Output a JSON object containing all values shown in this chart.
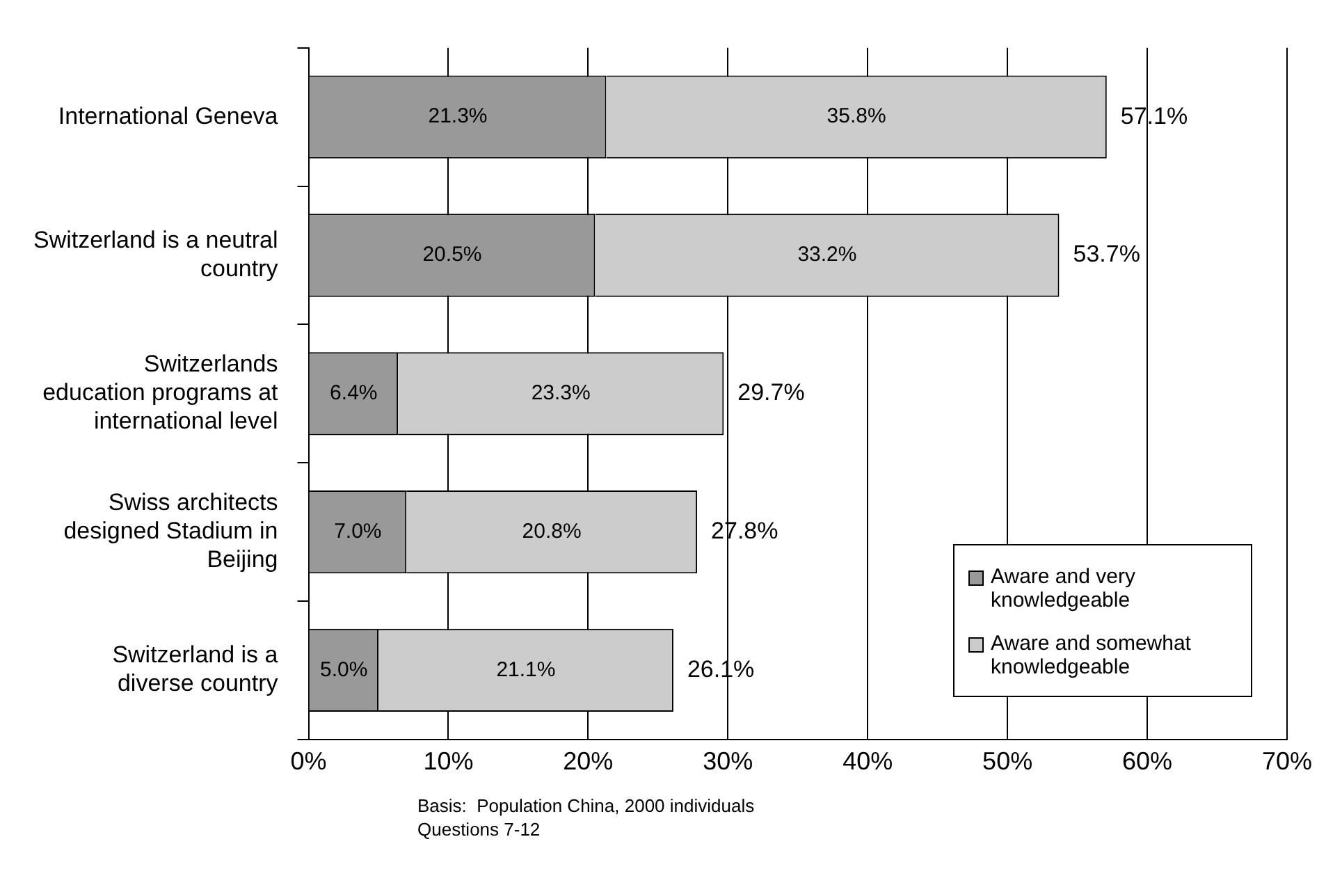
{
  "chart_data": {
    "type": "bar",
    "orientation": "horizontal",
    "stacked": true,
    "categories": [
      "International Geneva",
      "Switzerland is a neutral\ncountry",
      "Switzerlands\neducation programs at\ninternational level",
      "Swiss architects\ndesigned Stadium in\nBeijing",
      "Switzerland is a\ndiverse country"
    ],
    "series": [
      {
        "name": "Aware and very knowledgeable",
        "color": "#999999",
        "values": [
          21.3,
          20.5,
          6.4,
          7.0,
          5.0
        ],
        "value_labels": [
          "21.3%",
          "20.5%",
          "6.4%",
          "7.0%",
          "5.0%"
        ]
      },
      {
        "name": "Aware and somewhat knowledgeable",
        "color": "#cccccc",
        "values": [
          35.8,
          33.2,
          23.3,
          20.8,
          21.1
        ],
        "value_labels": [
          "35.8%",
          "33.2%",
          "23.3%",
          "20.8%",
          "21.1%"
        ]
      }
    ],
    "totals": [
      "57.1%",
      "53.7%",
      "29.7%",
      "27.8%",
      "26.1%"
    ],
    "xlim": [
      0,
      70
    ],
    "xticks": [
      {
        "value": 0,
        "label": "0%"
      },
      {
        "value": 10,
        "label": "10%"
      },
      {
        "value": 20,
        "label": "20%"
      },
      {
        "value": 30,
        "label": "30%"
      },
      {
        "value": 40,
        "label": "40%"
      },
      {
        "value": 50,
        "label": "50%"
      },
      {
        "value": 60,
        "label": "60%"
      },
      {
        "value": 70,
        "label": "70%"
      }
    ],
    "grid": "x",
    "legend": "bottom right",
    "annotations": [
      "Basis:  Population China, 2000 individuals",
      "Questions 7-12"
    ]
  }
}
